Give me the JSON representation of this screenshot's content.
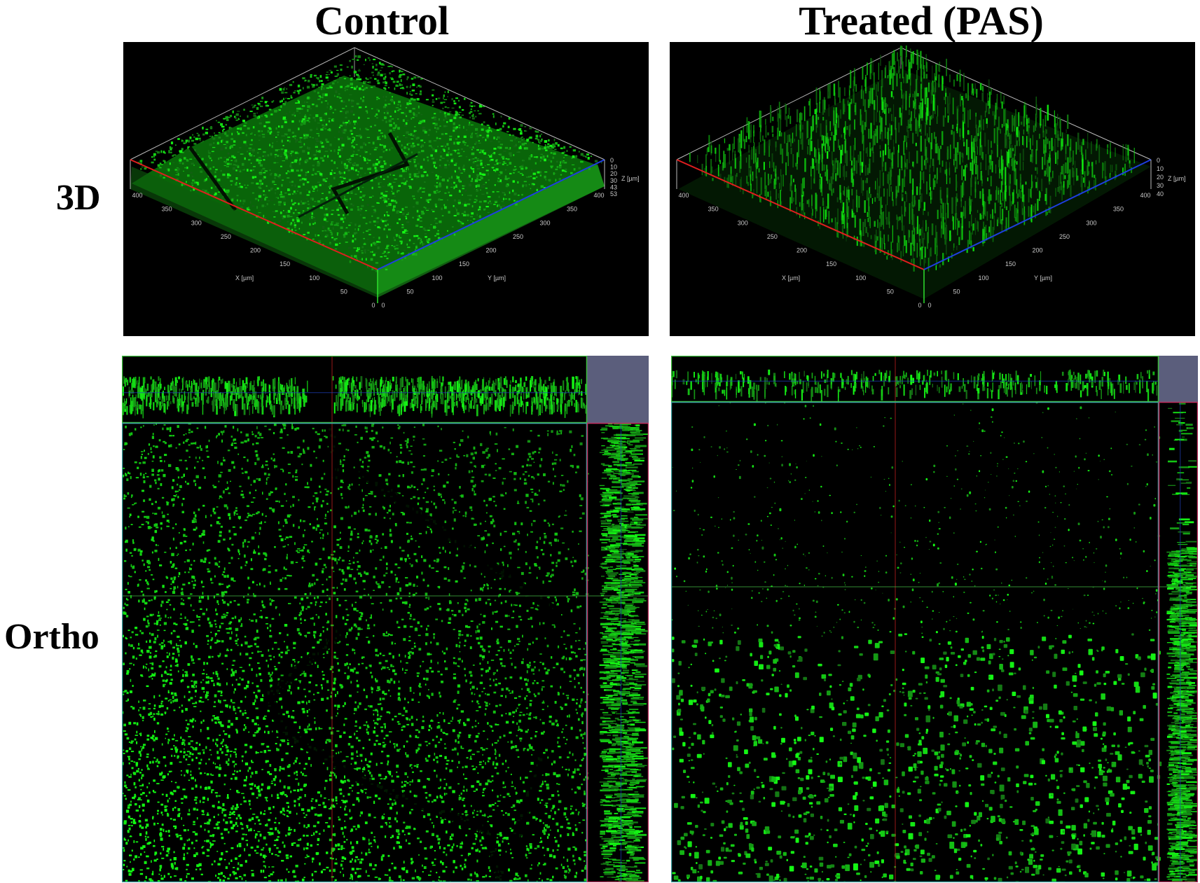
{
  "column_titles": [
    "Control",
    "Treated (PAS)"
  ],
  "row_labels": [
    "3D",
    "Ortho"
  ],
  "panels_3d": [
    {
      "x_axis_label": "X [µm]",
      "y_axis_label": "Y [µm]",
      "z_axis_label": "Z [µm]",
      "x_ticks": [
        "0",
        "50",
        "100",
        "150",
        "200",
        "250",
        "300",
        "350",
        "400"
      ],
      "y_ticks": [
        "0",
        "50",
        "100",
        "150",
        "200",
        "250",
        "300",
        "350",
        "400"
      ],
      "z_ticks": [
        "0",
        "10",
        "20",
        "30",
        "43",
        "53"
      ]
    },
    {
      "x_axis_label": "X [µm]",
      "y_axis_label": "Y [µm]",
      "z_axis_label": "Z [µm]",
      "x_ticks": [
        "0",
        "50",
        "100",
        "150",
        "200",
        "250",
        "300",
        "350",
        "400"
      ],
      "y_ticks": [
        "0",
        "50",
        "100",
        "150",
        "200",
        "250",
        "300",
        "350",
        "400"
      ],
      "z_ticks": [
        "0",
        "10",
        "20",
        "30",
        "40"
      ]
    }
  ],
  "colors": {
    "biofilm_green": "#22d422",
    "x_axis": "#e01e1e",
    "y_axis": "#1e3ee0",
    "z_axis": "#2ee02e",
    "box_lines": "#bdbdbd",
    "corner_patch": "#5b5e7c"
  }
}
